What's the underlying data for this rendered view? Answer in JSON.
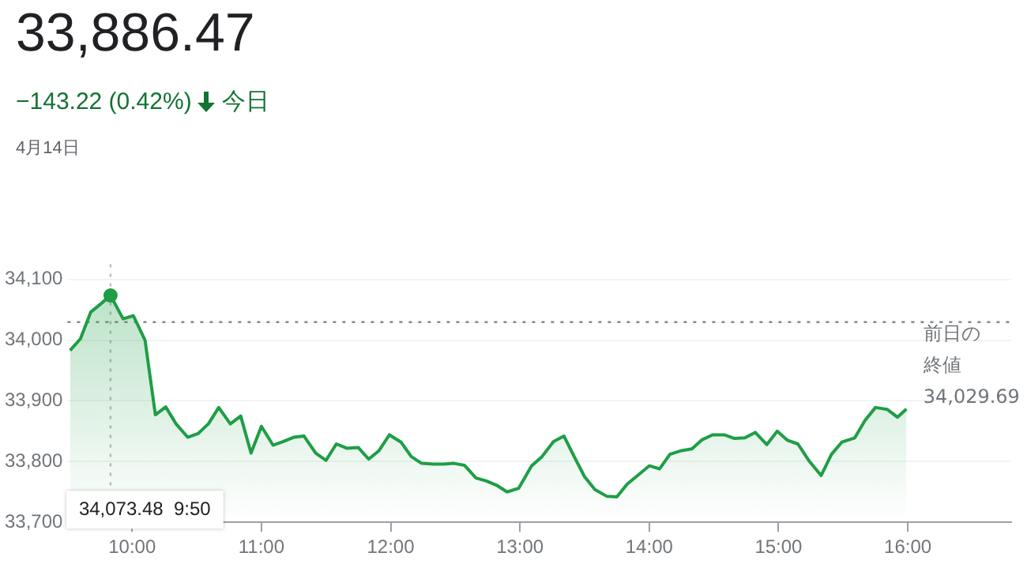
{
  "chart_data": {
    "type": "area",
    "title": "33,886.47",
    "subtitle": "−143.22 (0.42%)",
    "annotations": [
      "今日",
      "4月14日",
      "34,073.48  9:50"
    ],
    "x": [
      9.52,
      9.6,
      9.68,
      9.76,
      9.833,
      9.93,
      10.01,
      10.1,
      10.18,
      10.26,
      10.34,
      10.43,
      10.51,
      10.59,
      10.67,
      10.76,
      10.84,
      10.92,
      11.0,
      11.09,
      11.17,
      11.25,
      11.33,
      11.42,
      11.5,
      11.58,
      11.66,
      11.75,
      11.83,
      11.91,
      11.99,
      12.08,
      12.16,
      12.24,
      12.33,
      12.41,
      12.49,
      12.57,
      12.66,
      12.74,
      12.82,
      12.9,
      12.99,
      13.09,
      13.17,
      13.26,
      13.34,
      13.42,
      13.5,
      13.58,
      13.67,
      13.75,
      13.83,
      13.91,
      14.0,
      14.08,
      14.16,
      14.25,
      14.33,
      14.41,
      14.49,
      14.58,
      14.66,
      14.74,
      14.82,
      14.91,
      14.99,
      15.07,
      15.15,
      15.24,
      15.33,
      15.41,
      15.49,
      15.59,
      15.67,
      15.75,
      15.84,
      15.92,
      15.99
    ],
    "series": [
      {
        "color": "#1e9e46",
        "values": [
          33983,
          34002,
          34046,
          34060,
          34073.48,
          34035,
          34040,
          34000,
          33877,
          33890,
          33862,
          33840,
          33846,
          33862,
          33889,
          33862,
          33875,
          33814,
          33858,
          33827,
          33833,
          33840,
          33842,
          33814,
          33802,
          33829,
          33822,
          33823,
          33804,
          33818,
          33844,
          33832,
          33808,
          33797,
          33796,
          33796,
          33797,
          33794,
          33773,
          33768,
          33761,
          33750,
          33756,
          33793,
          33808,
          33833,
          33842,
          33808,
          33775,
          33754,
          33743,
          33742,
          33763,
          33777,
          33793,
          33788,
          33812,
          33818,
          33821,
          33836,
          33844,
          33844,
          33838,
          33839,
          33848,
          33828,
          33850,
          33835,
          33829,
          33800,
          33777,
          33812,
          33832,
          33839,
          33868,
          33889,
          33886,
          33873,
          33886.47
        ]
      },
      {
        "type": "scatter",
        "color": "#1e9e46",
        "x": [
          9.833
        ],
        "values": [
          34073.48
        ]
      }
    ],
    "xlim": [
      9.5,
      16.8
    ],
    "ylim": [
      33700,
      34125
    ],
    "xticks": [
      {
        "value": 10,
        "label": "10:00"
      },
      {
        "value": 11,
        "label": "11:00"
      },
      {
        "value": 12,
        "label": "12:00"
      },
      {
        "value": 13,
        "label": "13:00"
      },
      {
        "value": 14,
        "label": "14:00"
      },
      {
        "value": 15,
        "label": "15:00"
      },
      {
        "value": 16,
        "label": "16:00"
      }
    ],
    "yticks": [
      {
        "value": 33700,
        "label": "33,700"
      },
      {
        "value": 33800,
        "label": "33,800"
      },
      {
        "value": 33900,
        "label": "33,900"
      },
      {
        "value": 34000,
        "label": "34,000"
      },
      {
        "value": 34100,
        "label": "34,100"
      }
    ],
    "ref_lines": [
      {
        "axis": "y",
        "value": 34029.69,
        "label": "前日の終値34,029.69",
        "line_style": "dotted",
        "color": "#888888"
      },
      {
        "axis": "x",
        "value": 9.833,
        "line_style": "dotted",
        "color": "#bbbbbb"
      }
    ],
    "grid": "y",
    "line_style": "solid",
    "legend": false
  }
}
